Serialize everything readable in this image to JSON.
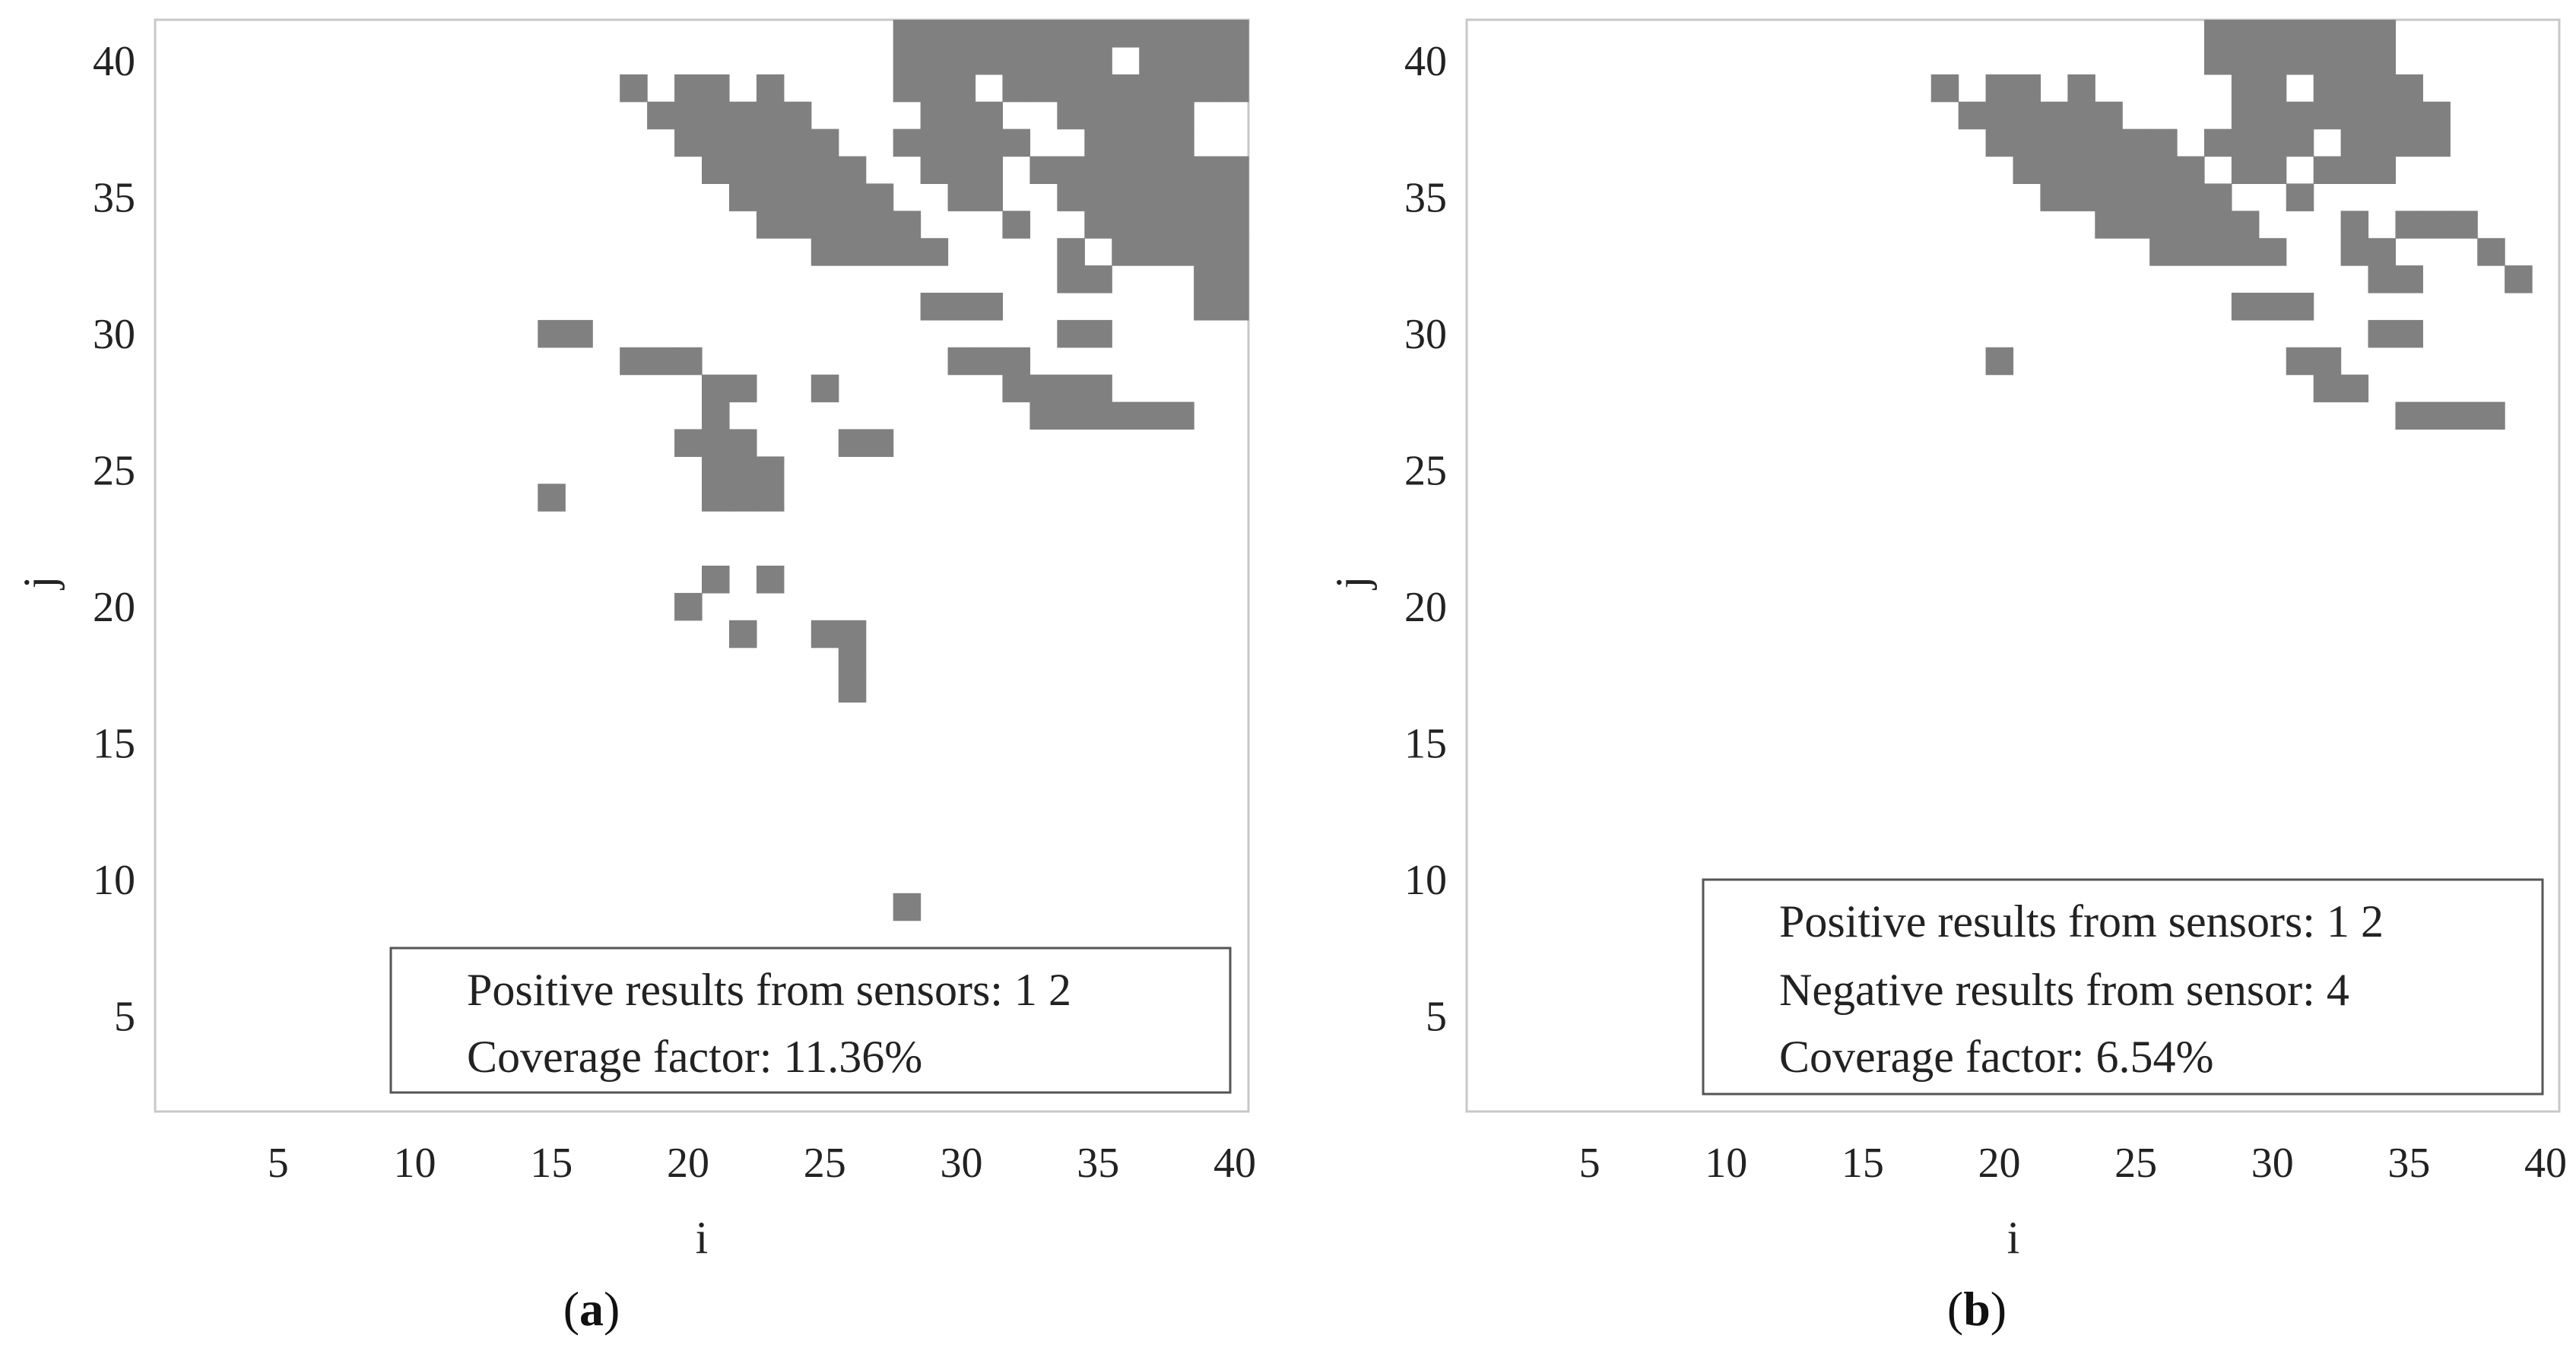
{
  "colors": {
    "cell": "#808080",
    "frame": "#c8c8c8",
    "legend_border": "#555555",
    "text": "#222222"
  },
  "chart_data": [
    {
      "type": "heatmap",
      "panel": "a",
      "caption_label": "a",
      "xlabel": "i",
      "ylabel": "j",
      "xlim": [
        1,
        41
      ],
      "ylim": [
        1,
        41
      ],
      "xticks": [
        "5",
        "10",
        "15",
        "20",
        "25",
        "30",
        "35",
        "40"
      ],
      "yticks": [
        "5",
        "10",
        "15",
        "20",
        "25",
        "30",
        "35",
        "40"
      ],
      "legend": [
        "Positive results from sensors: 1  2",
        "Coverage factor: 11.36%"
      ],
      "cells": [
        [
          28,
          41
        ],
        [
          29,
          41
        ],
        [
          30,
          41
        ],
        [
          31,
          41
        ],
        [
          32,
          41
        ],
        [
          33,
          41
        ],
        [
          34,
          41
        ],
        [
          35,
          41
        ],
        [
          36,
          41
        ],
        [
          37,
          41
        ],
        [
          38,
          41
        ],
        [
          39,
          41
        ],
        [
          40,
          41
        ],
        [
          28,
          40
        ],
        [
          29,
          40
        ],
        [
          30,
          40
        ],
        [
          31,
          40
        ],
        [
          32,
          40
        ],
        [
          33,
          40
        ],
        [
          34,
          40
        ],
        [
          35,
          40
        ],
        [
          37,
          40
        ],
        [
          38,
          40
        ],
        [
          39,
          40
        ],
        [
          40,
          40
        ],
        [
          18,
          39
        ],
        [
          20,
          39
        ],
        [
          21,
          39
        ],
        [
          23,
          39
        ],
        [
          28,
          39
        ],
        [
          29,
          39
        ],
        [
          30,
          39
        ],
        [
          32,
          39
        ],
        [
          33,
          39
        ],
        [
          34,
          39
        ],
        [
          35,
          39
        ],
        [
          36,
          39
        ],
        [
          37,
          39
        ],
        [
          38,
          39
        ],
        [
          39,
          39
        ],
        [
          40,
          39
        ],
        [
          19,
          38
        ],
        [
          20,
          38
        ],
        [
          21,
          38
        ],
        [
          22,
          38
        ],
        [
          23,
          38
        ],
        [
          24,
          38
        ],
        [
          29,
          38
        ],
        [
          30,
          38
        ],
        [
          31,
          38
        ],
        [
          34,
          38
        ],
        [
          35,
          38
        ],
        [
          36,
          38
        ],
        [
          37,
          38
        ],
        [
          38,
          38
        ],
        [
          20,
          37
        ],
        [
          21,
          37
        ],
        [
          22,
          37
        ],
        [
          23,
          37
        ],
        [
          24,
          37
        ],
        [
          25,
          37
        ],
        [
          28,
          37
        ],
        [
          29,
          37
        ],
        [
          30,
          37
        ],
        [
          31,
          37
        ],
        [
          32,
          37
        ],
        [
          35,
          37
        ],
        [
          36,
          37
        ],
        [
          37,
          37
        ],
        [
          38,
          37
        ],
        [
          21,
          36
        ],
        [
          22,
          36
        ],
        [
          23,
          36
        ],
        [
          24,
          36
        ],
        [
          25,
          36
        ],
        [
          26,
          36
        ],
        [
          29,
          36
        ],
        [
          30,
          36
        ],
        [
          31,
          36
        ],
        [
          33,
          36
        ],
        [
          34,
          36
        ],
        [
          35,
          36
        ],
        [
          36,
          36
        ],
        [
          37,
          36
        ],
        [
          38,
          36
        ],
        [
          39,
          36
        ],
        [
          40,
          36
        ],
        [
          22,
          35
        ],
        [
          23,
          35
        ],
        [
          24,
          35
        ],
        [
          25,
          35
        ],
        [
          26,
          35
        ],
        [
          27,
          35
        ],
        [
          30,
          35
        ],
        [
          31,
          35
        ],
        [
          34,
          35
        ],
        [
          35,
          35
        ],
        [
          36,
          35
        ],
        [
          37,
          35
        ],
        [
          38,
          35
        ],
        [
          39,
          35
        ],
        [
          40,
          35
        ],
        [
          23,
          34
        ],
        [
          24,
          34
        ],
        [
          25,
          34
        ],
        [
          26,
          34
        ],
        [
          27,
          34
        ],
        [
          28,
          34
        ],
        [
          32,
          34
        ],
        [
          35,
          34
        ],
        [
          36,
          34
        ],
        [
          37,
          34
        ],
        [
          38,
          34
        ],
        [
          39,
          34
        ],
        [
          40,
          34
        ],
        [
          25,
          33
        ],
        [
          26,
          33
        ],
        [
          27,
          33
        ],
        [
          28,
          33
        ],
        [
          29,
          33
        ],
        [
          34,
          33
        ],
        [
          36,
          33
        ],
        [
          37,
          33
        ],
        [
          38,
          33
        ],
        [
          39,
          33
        ],
        [
          40,
          33
        ],
        [
          34,
          32
        ],
        [
          35,
          32
        ],
        [
          39,
          32
        ],
        [
          40,
          32
        ],
        [
          29,
          31
        ],
        [
          30,
          31
        ],
        [
          31,
          31
        ],
        [
          39,
          31
        ],
        [
          40,
          31
        ],
        [
          15,
          30
        ],
        [
          16,
          30
        ],
        [
          34,
          30
        ],
        [
          35,
          30
        ],
        [
          18,
          29
        ],
        [
          19,
          29
        ],
        [
          20,
          29
        ],
        [
          30,
          29
        ],
        [
          31,
          29
        ],
        [
          32,
          29
        ],
        [
          21,
          28
        ],
        [
          22,
          28
        ],
        [
          25,
          28
        ],
        [
          32,
          28
        ],
        [
          33,
          28
        ],
        [
          34,
          28
        ],
        [
          35,
          28
        ],
        [
          21,
          27
        ],
        [
          33,
          27
        ],
        [
          34,
          27
        ],
        [
          35,
          27
        ],
        [
          36,
          27
        ],
        [
          37,
          27
        ],
        [
          38,
          27
        ],
        [
          20,
          26
        ],
        [
          21,
          26
        ],
        [
          22,
          26
        ],
        [
          26,
          26
        ],
        [
          27,
          26
        ],
        [
          21,
          25
        ],
        [
          22,
          25
        ],
        [
          23,
          25
        ],
        [
          15,
          24
        ],
        [
          21,
          24
        ],
        [
          22,
          24
        ],
        [
          23,
          24
        ],
        [
          21,
          21
        ],
        [
          23,
          21
        ],
        [
          20,
          20
        ],
        [
          22,
          19
        ],
        [
          25,
          19
        ],
        [
          26,
          19
        ],
        [
          26,
          18
        ],
        [
          26,
          17
        ],
        [
          28,
          9
        ]
      ]
    },
    {
      "type": "heatmap",
      "panel": "b",
      "caption_label": "b",
      "xlabel": "i",
      "ylabel": "j",
      "xlim": [
        1,
        41
      ],
      "ylim": [
        1,
        41
      ],
      "xticks": [
        "5",
        "10",
        "15",
        "20",
        "25",
        "30",
        "35",
        "40"
      ],
      "yticks": [
        "5",
        "10",
        "15",
        "20",
        "25",
        "30",
        "35",
        "40"
      ],
      "legend": [
        "Positive results from sensors: 1  2",
        "Negative results from sensor: 4",
        "Coverage factor: 6.54%"
      ],
      "cells": [
        [
          28,
          41
        ],
        [
          29,
          41
        ],
        [
          30,
          41
        ],
        [
          31,
          41
        ],
        [
          32,
          41
        ],
        [
          33,
          41
        ],
        [
          34,
          41
        ],
        [
          28,
          40
        ],
        [
          29,
          40
        ],
        [
          30,
          40
        ],
        [
          31,
          40
        ],
        [
          32,
          40
        ],
        [
          33,
          40
        ],
        [
          34,
          40
        ],
        [
          18,
          39
        ],
        [
          20,
          39
        ],
        [
          21,
          39
        ],
        [
          23,
          39
        ],
        [
          29,
          39
        ],
        [
          30,
          39
        ],
        [
          32,
          39
        ],
        [
          33,
          39
        ],
        [
          34,
          39
        ],
        [
          35,
          39
        ],
        [
          19,
          38
        ],
        [
          20,
          38
        ],
        [
          21,
          38
        ],
        [
          22,
          38
        ],
        [
          23,
          38
        ],
        [
          24,
          38
        ],
        [
          29,
          38
        ],
        [
          30,
          38
        ],
        [
          31,
          38
        ],
        [
          32,
          38
        ],
        [
          33,
          38
        ],
        [
          34,
          38
        ],
        [
          35,
          38
        ],
        [
          36,
          38
        ],
        [
          20,
          37
        ],
        [
          21,
          37
        ],
        [
          22,
          37
        ],
        [
          23,
          37
        ],
        [
          24,
          37
        ],
        [
          25,
          37
        ],
        [
          26,
          37
        ],
        [
          28,
          37
        ],
        [
          29,
          37
        ],
        [
          30,
          37
        ],
        [
          31,
          37
        ],
        [
          33,
          37
        ],
        [
          34,
          37
        ],
        [
          35,
          37
        ],
        [
          36,
          37
        ],
        [
          21,
          36
        ],
        [
          22,
          36
        ],
        [
          23,
          36
        ],
        [
          24,
          36
        ],
        [
          25,
          36
        ],
        [
          26,
          36
        ],
        [
          27,
          36
        ],
        [
          29,
          36
        ],
        [
          30,
          36
        ],
        [
          32,
          36
        ],
        [
          33,
          36
        ],
        [
          34,
          36
        ],
        [
          22,
          35
        ],
        [
          23,
          35
        ],
        [
          24,
          35
        ],
        [
          25,
          35
        ],
        [
          26,
          35
        ],
        [
          27,
          35
        ],
        [
          28,
          35
        ],
        [
          31,
          35
        ],
        [
          24,
          34
        ],
        [
          25,
          34
        ],
        [
          26,
          34
        ],
        [
          27,
          34
        ],
        [
          28,
          34
        ],
        [
          29,
          34
        ],
        [
          33,
          34
        ],
        [
          35,
          34
        ],
        [
          36,
          34
        ],
        [
          37,
          34
        ],
        [
          26,
          33
        ],
        [
          27,
          33
        ],
        [
          28,
          33
        ],
        [
          29,
          33
        ],
        [
          30,
          33
        ],
        [
          33,
          33
        ],
        [
          34,
          33
        ],
        [
          38,
          33
        ],
        [
          34,
          32
        ],
        [
          35,
          32
        ],
        [
          39,
          32
        ],
        [
          29,
          31
        ],
        [
          30,
          31
        ],
        [
          31,
          31
        ],
        [
          34,
          30
        ],
        [
          35,
          30
        ],
        [
          20,
          29
        ],
        [
          31,
          29
        ],
        [
          32,
          29
        ],
        [
          32,
          28
        ],
        [
          33,
          28
        ],
        [
          35,
          27
        ],
        [
          36,
          27
        ],
        [
          37,
          27
        ],
        [
          38,
          27
        ]
      ]
    }
  ]
}
